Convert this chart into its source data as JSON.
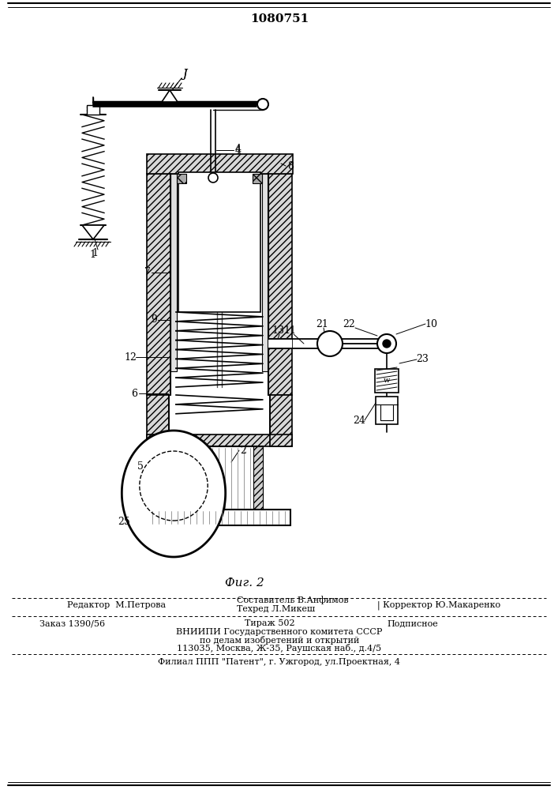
{
  "patent_number": "1080751",
  "fig_label": "Фиг. 2",
  "bg_color": "#ffffff",
  "line_color": "#000000",
  "editor_line": "Редактор  М.Петрова",
  "compiler_line": "Составитель В.Анфимов",
  "techred_line": "Техред Л.Микеш",
  "corrector_line": "Корректор Ю.Макаренко",
  "order_line": "Заказ 1390/56",
  "tirazh_line": "Тираж 502",
  "podpisnoe_line": "Подписное",
  "vniip_line1": "ВНИИПИ Государственного комитета СССР",
  "vniip_line2": "по делам изобретений и открытий",
  "vniip_line3": "113035, Москва, Ж-35, Раушская наб., д.4/5",
  "filial_line": "Филиал ППП \"Патент\", г. Ужгород, ул.Проектная, 4",
  "sep_char": "w"
}
